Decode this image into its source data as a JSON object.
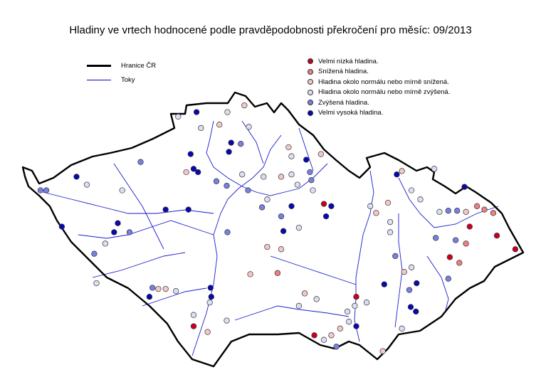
{
  "title": "Hladiny ve vrtech hodnocené podle pravděpodobnosti překročení pro měsíc: 09/2013",
  "legend_lines": [
    {
      "label": "Hranice ČR",
      "color": "#000000"
    },
    {
      "label": "Toky",
      "color": "#0000cc"
    }
  ],
  "legend_levels": [
    {
      "level": 1,
      "label": "Velmi nízká hladina.",
      "color": "#c8001e"
    },
    {
      "level": 2,
      "label": "Snížená hladina.",
      "color": "#ee8080"
    },
    {
      "level": 3,
      "label": "Hladina okolo normálu nebo mírně snížená.",
      "color": "#f5c8c8"
    },
    {
      "level": 4,
      "label": "Hladina okolo normálu nebo mírně zvýšená.",
      "color": "#dcdff2"
    },
    {
      "level": 5,
      "label": "Zvýšená hladina.",
      "color": "#7880e0"
    },
    {
      "level": 6,
      "label": "Velmi vysoká hladina.",
      "color": "#0808b0"
    }
  ],
  "stations": [
    [
      14.47,
      50.82,
      6
    ],
    [
      14.22,
      50.78,
      4
    ],
    [
      14.89,
      50.82,
      4
    ],
    [
      15.12,
      50.88,
      3
    ],
    [
      14.53,
      50.68,
      4
    ],
    [
      14.78,
      50.71,
      3
    ],
    [
      15.18,
      50.69,
      4
    ],
    [
      14.94,
      50.55,
      6
    ],
    [
      15.07,
      50.54,
      5
    ],
    [
      14.91,
      50.47,
      6
    ],
    [
      14.39,
      50.45,
      6
    ],
    [
      14.43,
      50.32,
      6
    ],
    [
      14.33,
      50.29,
      3
    ],
    [
      14.49,
      50.29,
      6
    ],
    [
      14.74,
      50.21,
      5
    ],
    [
      14.88,
      50.17,
      5
    ],
    [
      15.09,
      50.27,
      4
    ],
    [
      15.17,
      50.13,
      5
    ],
    [
      15.38,
      50.25,
      4
    ],
    [
      15.72,
      50.51,
      3
    ],
    [
      15.76,
      50.43,
      4
    ],
    [
      15.96,
      50.4,
      6
    ],
    [
      16.16,
      50.45,
      3
    ],
    [
      15.62,
      50.25,
      3
    ],
    [
      15.84,
      50.18,
      4
    ],
    [
      16.01,
      50.29,
      5
    ],
    [
      16.05,
      50.13,
      4
    ],
    [
      15.76,
      50.27,
      4
    ],
    [
      16.03,
      50.22,
      5
    ],
    [
      16.2,
      50.01,
      1
    ],
    [
      16.3,
      49.99,
      6
    ],
    [
      16.23,
      49.9,
      6
    ],
    [
      15.43,
      50.05,
      4
    ],
    [
      15.36,
      49.98,
      5
    ],
    [
      15.76,
      49.99,
      6
    ],
    [
      15.62,
      49.9,
      5
    ],
    [
      15.65,
      49.77,
      6
    ],
    [
      15.86,
      49.8,
      4
    ],
    [
      15.43,
      49.63,
      3
    ],
    [
      15.62,
      49.61,
      3
    ],
    [
      15.2,
      49.39,
      3
    ],
    [
      15.57,
      49.4,
      2
    ],
    [
      15.94,
      49.22,
      3
    ],
    [
      16.1,
      49.17,
      4
    ],
    [
      15.86,
      49.11,
      4
    ],
    [
      16.64,
      49.19,
      1
    ],
    [
      16.62,
      49.11,
      4
    ],
    [
      16.78,
      49.14,
      4
    ],
    [
      16.52,
      49.06,
      4
    ],
    [
      16.54,
      48.97,
      4
    ],
    [
      16.64,
      48.93,
      6
    ],
    [
      16.42,
      48.91,
      3
    ],
    [
      16.3,
      48.85,
      3
    ],
    [
      16.07,
      48.85,
      1
    ],
    [
      16.2,
      48.81,
      4
    ],
    [
      16.37,
      48.75,
      5
    ],
    [
      17.0,
      48.71,
      3
    ],
    [
      17.26,
      48.91,
      4
    ],
    [
      17.38,
      49.1,
      6
    ],
    [
      17.45,
      49.06,
      6
    ],
    [
      17.36,
      49.25,
      5
    ],
    [
      17.46,
      49.31,
      6
    ],
    [
      17.29,
      49.41,
      3
    ],
    [
      17.39,
      49.45,
      4
    ],
    [
      17.02,
      49.3,
      6
    ],
    [
      17.17,
      49.55,
      5
    ],
    [
      17.1,
      49.85,
      4
    ],
    [
      17.1,
      49.76,
      4
    ],
    [
      16.91,
      49.93,
      3
    ],
    [
      17.07,
      50.02,
      3
    ],
    [
      16.83,
      49.99,
      4
    ],
    [
      17.19,
      50.27,
      6
    ],
    [
      17.26,
      50.3,
      3
    ],
    [
      17.7,
      50.32,
      4
    ],
    [
      17.39,
      50.13,
      4
    ],
    [
      17.51,
      50.05,
      4
    ],
    [
      17.77,
      49.94,
      4
    ],
    [
      17.89,
      49.95,
      5
    ],
    [
      18.01,
      49.95,
      5
    ],
    [
      18.11,
      50.16,
      6
    ],
    [
      18.13,
      49.94,
      3
    ],
    [
      18.28,
      49.99,
      2
    ],
    [
      18.38,
      49.96,
      2
    ],
    [
      18.5,
      49.93,
      2
    ],
    [
      18.18,
      49.81,
      1
    ],
    [
      18.55,
      49.73,
      1
    ],
    [
      18.8,
      49.61,
      1
    ],
    [
      18.13,
      49.66,
      2
    ],
    [
      17.91,
      49.54,
      1
    ],
    [
      18.04,
      49.49,
      2
    ],
    [
      17.99,
      49.69,
      5
    ],
    [
      17.72,
      49.71,
      5
    ],
    [
      17.89,
      49.35,
      5
    ],
    [
      13.4,
      49.84,
      6
    ],
    [
      13.35,
      49.76,
      6
    ],
    [
      13.23,
      49.66,
      4
    ],
    [
      13.56,
      49.76,
      5
    ],
    [
      13.08,
      49.57,
      5
    ],
    [
      13.11,
      49.31,
      4
    ],
    [
      12.84,
      50.25,
      6
    ],
    [
      12.98,
      50.18,
      4
    ],
    [
      12.64,
      49.81,
      6
    ],
    [
      12.43,
      50.13,
      5
    ],
    [
      12.35,
      50.13,
      5
    ],
    [
      13.71,
      50.38,
      5
    ],
    [
      13.46,
      50.13,
      4
    ],
    [
      14.05,
      49.96,
      6
    ],
    [
      14.36,
      49.96,
      6
    ],
    [
      14.89,
      49.76,
      5
    ],
    [
      13.87,
      49.27,
      5
    ],
    [
      13.83,
      49.19,
      6
    ],
    [
      13.95,
      49.26,
      3
    ],
    [
      14.05,
      49.26,
      3
    ],
    [
      14.19,
      49.24,
      4
    ],
    [
      14.66,
      49.27,
      6
    ],
    [
      14.67,
      49.19,
      6
    ],
    [
      14.65,
      49.14,
      4
    ],
    [
      14.43,
      49.03,
      4
    ],
    [
      14.43,
      48.93,
      1
    ],
    [
      14.62,
      48.88,
      3
    ],
    [
      14.88,
      48.98,
      4
    ]
  ]
}
